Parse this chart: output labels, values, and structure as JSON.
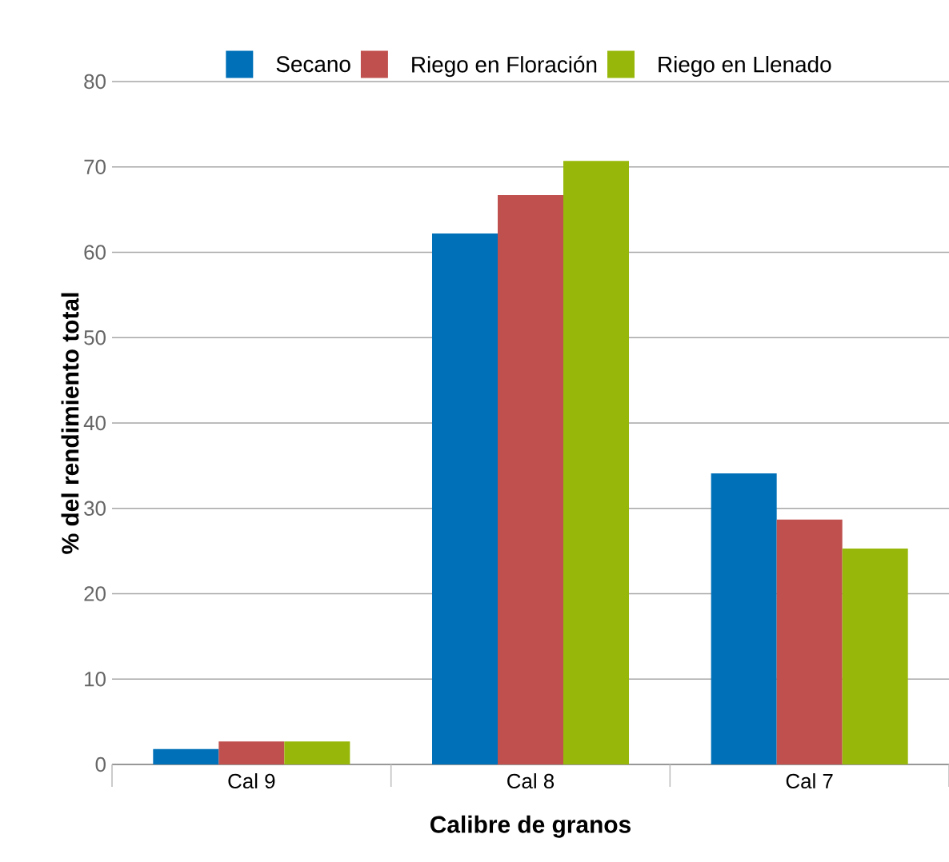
{
  "chart_data": {
    "type": "bar",
    "xlabel": "Calibre de granos",
    "ylabel": "% del rendimiento total",
    "categories": [
      "Cal 9",
      "Cal 8",
      "Cal 7"
    ],
    "series": [
      {
        "name": "Secano",
        "color": "#0070b8",
        "values": [
          1.8,
          62.2,
          34.1
        ]
      },
      {
        "name": "Riego en Floración",
        "color": "#c0504d",
        "values": [
          2.7,
          66.7,
          28.7
        ]
      },
      {
        "name": "Riego en Llenado",
        "color": "#97b80a",
        "values": [
          2.7,
          70.7,
          25.3
        ]
      }
    ],
    "ylim": [
      0,
      80
    ],
    "yticks": [
      0,
      10,
      20,
      30,
      40,
      50,
      60,
      70,
      80
    ],
    "grid": "y",
    "legend": "top"
  }
}
